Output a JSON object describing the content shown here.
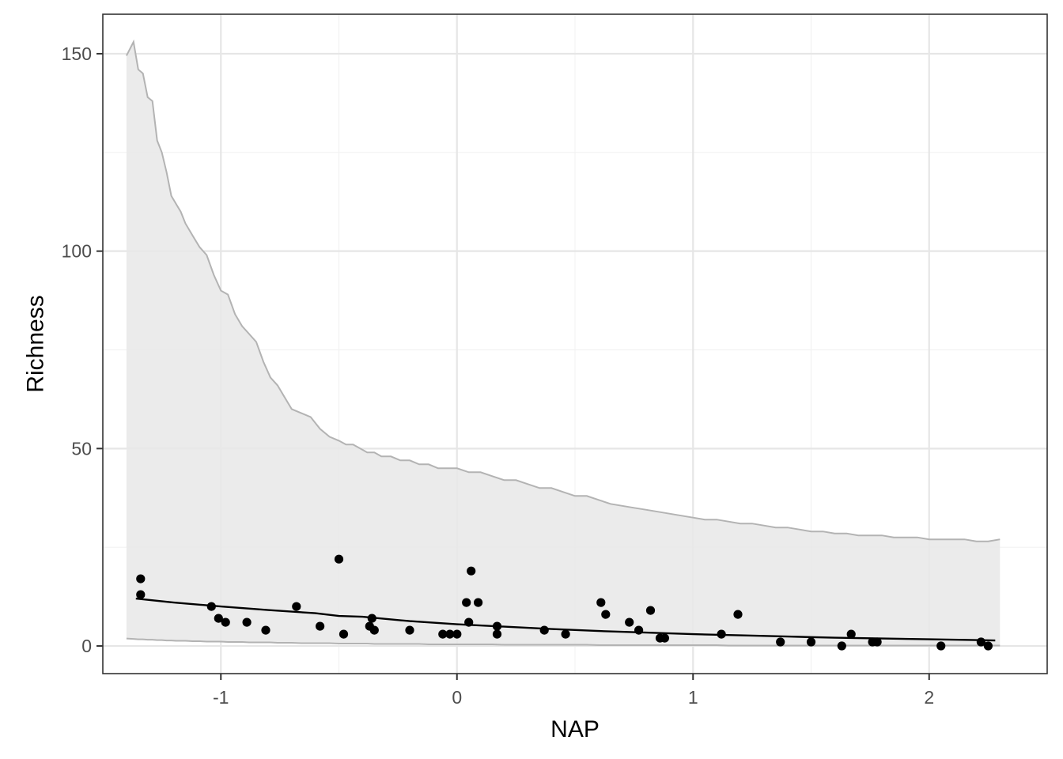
{
  "chart_data": {
    "type": "scatter",
    "xlabel": "NAP",
    "ylabel": "Richness",
    "xlim": [
      -1.5,
      2.5
    ],
    "ylim": [
      -7,
      160
    ],
    "x_ticks": [
      -1,
      0,
      1,
      2
    ],
    "x_tick_labels": [
      "-1",
      "0",
      "1",
      "2"
    ],
    "y_ticks": [
      0,
      50,
      100,
      150
    ],
    "y_tick_labels": [
      "0",
      "50",
      "100",
      "150"
    ],
    "grid": true,
    "colors": {
      "points": "#000000",
      "fit_line": "#000000",
      "band_fill": "#e8e8e8",
      "band_edge": "#b3b3b3",
      "grid_major": "#e6e6e6",
      "grid_minor": "#f2f2f2",
      "panel_border": "#333333"
    },
    "points": [
      {
        "x": -1.34,
        "y": 17
      },
      {
        "x": -1.34,
        "y": 13
      },
      {
        "x": -1.04,
        "y": 10
      },
      {
        "x": -1.01,
        "y": 7
      },
      {
        "x": -0.98,
        "y": 6
      },
      {
        "x": -0.89,
        "y": 6
      },
      {
        "x": -0.81,
        "y": 4
      },
      {
        "x": -0.68,
        "y": 10
      },
      {
        "x": -0.58,
        "y": 5
      },
      {
        "x": -0.5,
        "y": 22
      },
      {
        "x": -0.48,
        "y": 3
      },
      {
        "x": -0.37,
        "y": 5
      },
      {
        "x": -0.36,
        "y": 7
      },
      {
        "x": -0.35,
        "y": 4
      },
      {
        "x": -0.2,
        "y": 4
      },
      {
        "x": -0.06,
        "y": 3
      },
      {
        "x": -0.03,
        "y": 3
      },
      {
        "x": 0.0,
        "y": 3
      },
      {
        "x": 0.04,
        "y": 11
      },
      {
        "x": 0.05,
        "y": 6
      },
      {
        "x": 0.06,
        "y": 19
      },
      {
        "x": 0.09,
        "y": 11
      },
      {
        "x": 0.17,
        "y": 5
      },
      {
        "x": 0.17,
        "y": 3
      },
      {
        "x": 0.37,
        "y": 4
      },
      {
        "x": 0.46,
        "y": 3
      },
      {
        "x": 0.61,
        "y": 11
      },
      {
        "x": 0.63,
        "y": 8
      },
      {
        "x": 0.73,
        "y": 6
      },
      {
        "x": 0.77,
        "y": 4
      },
      {
        "x": 0.82,
        "y": 9
      },
      {
        "x": 0.86,
        "y": 2
      },
      {
        "x": 0.88,
        "y": 2
      },
      {
        "x": 1.12,
        "y": 3
      },
      {
        "x": 1.19,
        "y": 8
      },
      {
        "x": 1.37,
        "y": 1
      },
      {
        "x": 1.5,
        "y": 1
      },
      {
        "x": 1.63,
        "y": 0
      },
      {
        "x": 1.67,
        "y": 3
      },
      {
        "x": 1.76,
        "y": 1
      },
      {
        "x": 1.78,
        "y": 1
      },
      {
        "x": 2.05,
        "y": 0
      },
      {
        "x": 2.22,
        "y": 1
      },
      {
        "x": 2.25,
        "y": 0
      }
    ],
    "fit": {
      "x": [
        -1.36,
        -1.2,
        -1.0,
        -0.8,
        -0.6,
        -0.5,
        -0.4,
        -0.2,
        0.0,
        0.2,
        0.4,
        0.6,
        0.8,
        1.0,
        1.2,
        1.4,
        1.6,
        1.8,
        2.0,
        2.2,
        2.28
      ],
      "y": [
        12,
        11,
        10,
        9.1,
        8.3,
        7.6,
        7.4,
        6.3,
        5.5,
        4.9,
        4.3,
        3.8,
        3.4,
        3.0,
        2.7,
        2.4,
        2.1,
        1.9,
        1.7,
        1.5,
        1.4
      ]
    },
    "band": {
      "x": [
        -1.4,
        -1.37,
        -1.35,
        -1.33,
        -1.31,
        -1.29,
        -1.27,
        -1.25,
        -1.23,
        -1.21,
        -1.19,
        -1.17,
        -1.15,
        -1.12,
        -1.09,
        -1.06,
        -1.03,
        -1.0,
        -0.97,
        -0.94,
        -0.91,
        -0.88,
        -0.85,
        -0.82,
        -0.79,
        -0.76,
        -0.73,
        -0.7,
        -0.66,
        -0.62,
        -0.58,
        -0.54,
        -0.5,
        -0.47,
        -0.44,
        -0.41,
        -0.38,
        -0.35,
        -0.32,
        -0.28,
        -0.24,
        -0.2,
        -0.16,
        -0.12,
        -0.08,
        -0.04,
        0.0,
        0.05,
        0.1,
        0.15,
        0.2,
        0.25,
        0.3,
        0.35,
        0.4,
        0.45,
        0.5,
        0.55,
        0.6,
        0.65,
        0.7,
        0.75,
        0.8,
        0.85,
        0.9,
        0.95,
        1.0,
        1.05,
        1.1,
        1.15,
        1.2,
        1.25,
        1.3,
        1.35,
        1.4,
        1.45,
        1.5,
        1.55,
        1.6,
        1.65,
        1.7,
        1.75,
        1.8,
        1.85,
        1.9,
        1.95,
        2.0,
        2.05,
        2.1,
        2.15,
        2.2,
        2.25,
        2.3
      ],
      "upper": [
        149.5,
        153,
        146,
        145,
        139,
        138,
        128,
        125,
        120,
        114,
        112,
        110,
        107,
        104,
        101,
        99,
        94,
        90,
        89,
        84,
        81,
        79,
        77,
        72,
        68,
        66,
        63,
        60,
        59,
        58,
        55,
        53,
        52,
        51,
        51,
        50,
        49,
        49,
        48,
        48,
        47,
        47,
        46,
        46,
        45,
        45,
        45,
        44,
        44,
        43,
        42,
        42,
        41,
        40,
        40,
        39,
        38,
        38,
        37,
        36,
        35.5,
        35,
        34.5,
        34,
        33.5,
        33,
        32.5,
        32,
        32,
        31.5,
        31,
        31,
        30.5,
        30,
        30,
        29.5,
        29,
        29,
        28.5,
        28.5,
        28,
        28,
        28,
        27.5,
        27.5,
        27.5,
        27,
        27,
        27,
        27,
        26.5,
        26.5,
        27
      ],
      "lower": [
        1.9,
        1.8,
        1.7,
        1.7,
        1.6,
        1.6,
        1.5,
        1.5,
        1.4,
        1.4,
        1.3,
        1.3,
        1.3,
        1.2,
        1.2,
        1.1,
        1.1,
        1.1,
        1.0,
        1.0,
        1.0,
        0.9,
        0.9,
        0.9,
        0.9,
        0.8,
        0.8,
        0.8,
        0.7,
        0.7,
        0.7,
        0.7,
        0.6,
        0.6,
        0.6,
        0.6,
        0.6,
        0.5,
        0.5,
        0.5,
        0.5,
        0.5,
        0.5,
        0.4,
        0.4,
        0.4,
        0.4,
        0.4,
        0.4,
        0.4,
        0.3,
        0.3,
        0.3,
        0.3,
        0.3,
        0.3,
        0.3,
        0.3,
        0.2,
        0.2,
        0.2,
        0.2,
        0.2,
        0.2,
        0.2,
        0.2,
        0.2,
        0.2,
        0.2,
        0.1,
        0.1,
        0.1,
        0.1,
        0.1,
        0.1,
        0.1,
        0.1,
        0.1,
        0.1,
        0.1,
        0.1,
        0.1,
        0.1,
        0.1,
        0.1,
        0.1,
        0.1,
        0.1,
        0.1,
        0.1,
        0.1,
        0.1,
        0.1
      ]
    }
  }
}
